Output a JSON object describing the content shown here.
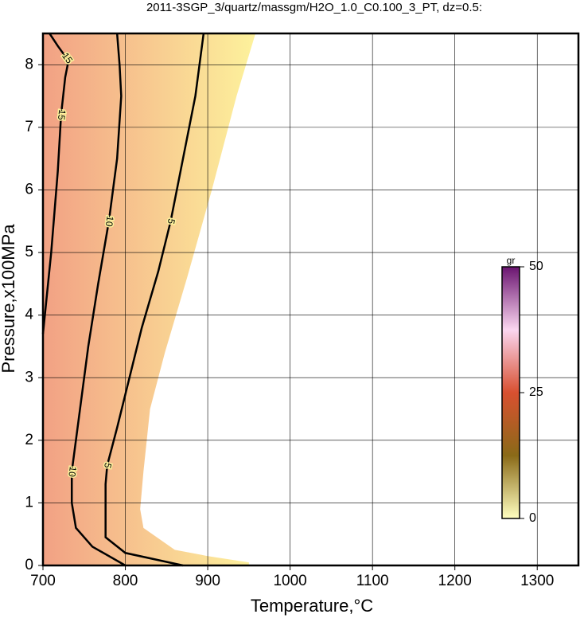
{
  "chart_data": {
    "type": "contour",
    "title": "2011-3SGP_3/quartz/massgm/H2O_1.0_C0.100_3_PT, dz=0.5:",
    "x_label": "Temperature,°C",
    "y_label": "Pressure,x100MPa",
    "xlim": [
      700,
      1350
    ],
    "ylim": [
      0,
      8.5
    ],
    "xticks": [
      700,
      800,
      900,
      1000,
      1100,
      1200,
      1300
    ],
    "yticks": [
      0,
      1,
      2,
      3,
      4,
      5,
      6,
      7,
      8
    ],
    "grid": true,
    "fill_colors": [
      "#f2a184",
      "#fdf29c"
    ],
    "contours": [
      {
        "level": 15,
        "x": [
          700,
          710,
          718,
          722,
          727,
          730,
          729,
          718,
          708
        ],
        "y": [
          3.7,
          5.0,
          6.3,
          7.2,
          7.8,
          8.0,
          8.1,
          8.3,
          8.5
        ]
      },
      {
        "level": 10,
        "x": [
          800,
          760,
          740,
          735,
          735,
          740,
          745,
          755,
          767,
          780,
          790,
          795,
          793,
          790
        ],
        "y": [
          0,
          0.3,
          0.6,
          1.0,
          1.5,
          2.0,
          2.5,
          3.5,
          4.5,
          5.5,
          6.5,
          7.5,
          8.0,
          8.5
        ]
      },
      {
        "level": 5,
        "x": [
          870,
          800,
          776,
          776,
          778,
          790,
          805,
          820,
          840,
          855,
          870,
          885,
          895
        ],
        "y": [
          0,
          0.2,
          0.45,
          1.3,
          1.6,
          2.2,
          3.0,
          3.8,
          4.7,
          5.5,
          6.5,
          7.5,
          8.5
        ]
      }
    ],
    "edge": {
      "x": [
        700,
        958,
        935,
        905,
        875,
        848,
        830,
        822,
        818,
        822,
        860,
        900,
        950,
        950,
        700
      ],
      "y": [
        8.5,
        8.5,
        7.5,
        6.0,
        4.6,
        3.4,
        2.5,
        1.5,
        0.9,
        0.6,
        0.25,
        0.15,
        0.05,
        0,
        0
      ]
    },
    "colorbar": {
      "label": "gr",
      "lim": [
        0,
        50
      ],
      "ticks": [
        0,
        25,
        50
      ],
      "colors": [
        "#ffffc0",
        "#8a6a18",
        "#d85030",
        "#fbd6f0",
        "#6a1470"
      ]
    }
  }
}
